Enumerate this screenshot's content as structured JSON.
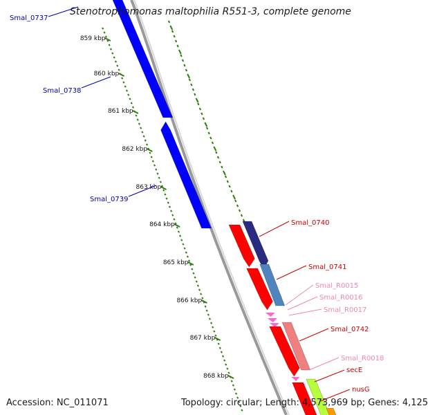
{
  "title": "Stenotrophomonas maltophilia R551-3, complete genome",
  "accession": "Accession: NC_011071",
  "stats": "Topology: circular; Length: 4,573,969 bp; Genes: 4,125",
  "ticks": [
    "859 kbp",
    "860 kbp",
    "861 kbp",
    "862 kbp",
    "863 kbp",
    "864 kbp",
    "865 kbp",
    "866 kbp",
    "867 kbp",
    "868 kbp"
  ],
  "genes": [
    {
      "id": "Smal_0737",
      "label": "Smal_0737",
      "strand": "reverse",
      "color": "#0000cc"
    },
    {
      "id": "Smal_0738",
      "label": "Smal_0738",
      "strand": "reverse",
      "color": "#0000cc"
    },
    {
      "id": "Smal_0739",
      "label": "Smal_0739",
      "strand": "reverse",
      "color": "#0000cc"
    },
    {
      "id": "Smal_0740",
      "label": "Smal_0740",
      "strand": "forward",
      "color": "#cc0000"
    },
    {
      "id": "Smal_0741",
      "label": "Smal_0741",
      "strand": "forward",
      "color": "#cc0000"
    },
    {
      "id": "Smal_R0015",
      "label": "Smal_R0015",
      "strand": "forward",
      "color": "#ee88aa"
    },
    {
      "id": "Smal_R0016",
      "label": "Smal_R0016",
      "strand": "forward",
      "color": "#ee88aa"
    },
    {
      "id": "Smal_R0017",
      "label": "Smal_R0017",
      "strand": "forward",
      "color": "#ee88aa"
    },
    {
      "id": "Smal_0742",
      "label": "Smal_0742",
      "strand": "forward",
      "color": "#cc0000"
    },
    {
      "id": "Smal_R0018",
      "label": "Smal_R0018",
      "strand": "forward",
      "color": "#ee88aa"
    },
    {
      "id": "secE",
      "label": "secE",
      "strand": "forward",
      "color": "#cc0000"
    },
    {
      "id": "nusG",
      "label": "nusG",
      "strand": "forward",
      "color": "#cc0000"
    }
  ],
  "colors": {
    "backbone": "#999999",
    "ticks": "#2e7d0e",
    "reverse_gene": "#0000ff",
    "forward_gene": "#ff0000",
    "rna_gene": "#ff66cc",
    "cog_navy": "#2a2a80",
    "cog_steel": "#4f84be",
    "cog_salmon": "#f08080",
    "cog_lime": "#b5ff3c",
    "cog_orange": "#ff9a00",
    "cog_green": "#79d35a"
  }
}
